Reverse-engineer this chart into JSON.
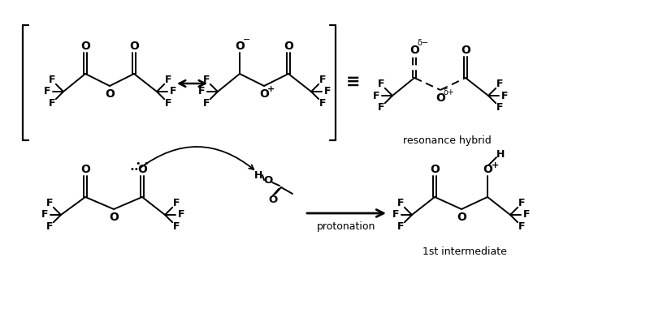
{
  "bg": "#ffffff",
  "resonance_hybrid": "resonance hybrid",
  "first_intermediate": "1st intermediate",
  "protonation": "protonation"
}
